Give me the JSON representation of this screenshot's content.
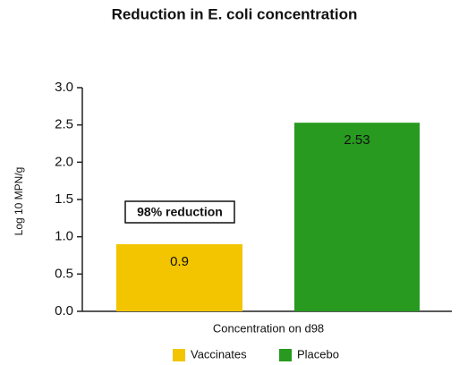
{
  "chart_data": {
    "type": "bar",
    "title": "Reduction in E. coli concentration",
    "ylabel": "Log 10 MPN/g",
    "xlabel": "Concentration on d98",
    "categories": [
      "Concentration on d98"
    ],
    "series": [
      {
        "name": "Vaccinates",
        "color": "#f2c500",
        "values": [
          0.9
        ]
      },
      {
        "name": "Placebo",
        "color": "#279a1f",
        "values": [
          2.53
        ]
      }
    ],
    "annotation": "98% reduction",
    "ylim": [
      0,
      3
    ],
    "yticks": [
      {
        "value": 0,
        "label": "0.0"
      },
      0.5,
      {
        "value": 1,
        "label": "1.0"
      },
      1.5,
      {
        "value": 2,
        "label": "2.0"
      },
      2.5,
      {
        "value": 3,
        "label": "3.0"
      }
    ],
    "legend": "bottom"
  }
}
